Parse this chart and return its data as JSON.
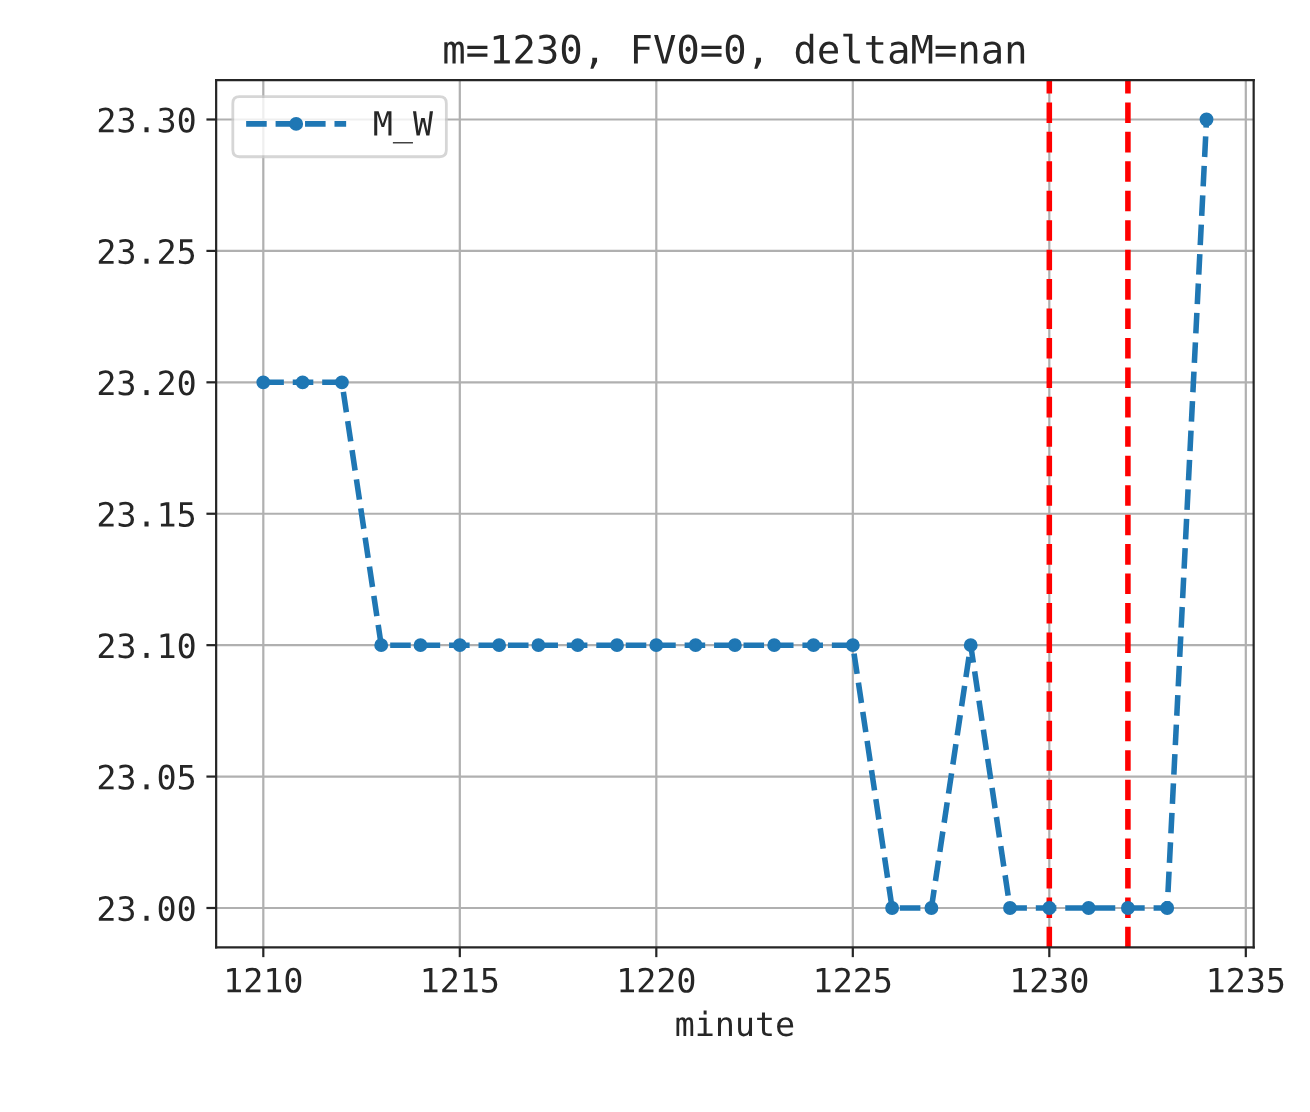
{
  "chart_data": {
    "type": "line",
    "title": "m=1230, FV0=0, deltaM=nan",
    "xlabel": "minute",
    "x": [
      1210,
      1211,
      1212,
      1213,
      1214,
      1215,
      1216,
      1217,
      1218,
      1219,
      1220,
      1221,
      1222,
      1223,
      1224,
      1225,
      1226,
      1227,
      1228,
      1229,
      1230,
      1231,
      1232,
      1233,
      1234
    ],
    "series": [
      {
        "name": "M_W",
        "color": "#1f77b4",
        "values": [
          23.2,
          23.2,
          23.2,
          23.1,
          23.1,
          23.1,
          23.1,
          23.1,
          23.1,
          23.1,
          23.1,
          23.1,
          23.1,
          23.1,
          23.1,
          23.1,
          23.0,
          23.0,
          23.1,
          23.0,
          23.0,
          23.0,
          23.0,
          23.0,
          23.3
        ]
      }
    ],
    "xlim": [
      1208.8,
      1235.2
    ],
    "xticks": [
      1210,
      1215,
      1220,
      1225,
      1230,
      1235
    ],
    "ylim": [
      22.985,
      23.315
    ],
    "yticks": [
      {
        "value": 23.0,
        "label": "23.00"
      },
      {
        "value": 23.05,
        "label": "23.05"
      },
      {
        "value": 23.1,
        "label": "23.10"
      },
      {
        "value": 23.15,
        "label": "23.15"
      },
      {
        "value": 23.2,
        "label": "23.20"
      },
      {
        "value": 23.25,
        "label": "23.25"
      },
      {
        "value": 23.3,
        "label": "23.30"
      }
    ],
    "ref_lines": [
      {
        "axis": "x",
        "value": 1230,
        "color": "#ff0000",
        "line_style": "dashed"
      },
      {
        "axis": "x",
        "value": 1232,
        "color": "#ff0000",
        "line_style": "dashed"
      }
    ],
    "grid": true,
    "legend": "top left",
    "marker": "circle",
    "line_style": "dashed"
  }
}
